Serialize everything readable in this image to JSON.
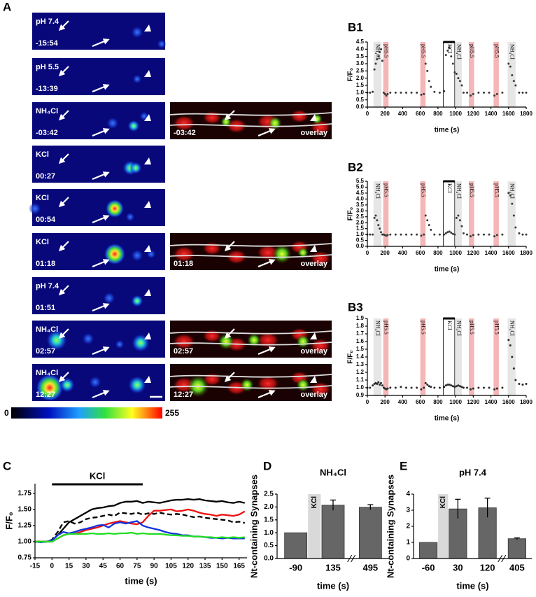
{
  "panel_a": {
    "label": "A",
    "rows": [
      {
        "condition": "pH 7.4",
        "time": "-15:54"
      },
      {
        "condition": "pH 5.5",
        "time": "-13:39"
      },
      {
        "condition": "NH₄Cl",
        "time": "-03:42"
      },
      {
        "condition": "KCl",
        "time": "00:27"
      },
      {
        "condition": "KCl",
        "time": "00:54"
      },
      {
        "condition": "KCl",
        "time": "01:18"
      },
      {
        "condition": "pH 7.4",
        "time": "01:51"
      },
      {
        "condition": "NH₄Cl",
        "time": "02:57"
      },
      {
        "condition": "NH₄Cl",
        "time": "12:27"
      }
    ],
    "overlays": [
      {
        "time": "-03:42",
        "label": "overlay"
      },
      {
        "time": "01:18",
        "label": "overlay"
      },
      {
        "time": "02:57",
        "label": "overlay"
      },
      {
        "time": "12:27",
        "label": "overlay"
      }
    ],
    "colorbar": {
      "min": 0,
      "max": 255
    }
  },
  "chart_data": [
    {
      "type": "scatter",
      "panel": "B1",
      "xlabel": "time (s)",
      "ylabel": "F/F₀",
      "color": "#3a3a3a",
      "x": [
        0,
        30,
        60,
        80,
        95,
        110,
        125,
        140,
        155,
        170,
        185,
        200,
        215,
        230,
        260,
        320,
        380,
        440,
        500,
        560,
        610,
        640,
        660,
        680,
        700,
        720,
        760,
        820,
        870,
        890,
        910,
        930,
        950,
        970,
        990,
        1010,
        1030,
        1050,
        1070,
        1090,
        1130,
        1170,
        1200,
        1260,
        1320,
        1380,
        1440,
        1470,
        1530,
        1600,
        1620,
        1640,
        1660,
        1680,
        1720,
        1760,
        1800
      ],
      "values": [
        1.0,
        1.0,
        1.05,
        2.6,
        3.0,
        3.3,
        3.5,
        3.8,
        4.0,
        3.2,
        1.0,
        0.9,
        0.8,
        0.9,
        1.0,
        1.0,
        1.0,
        1.0,
        1.0,
        1.0,
        0.85,
        0.9,
        3.0,
        2.5,
        1.8,
        1.4,
        1.05,
        1.0,
        1.1,
        3.6,
        3.9,
        4.1,
        3.5,
        3.0,
        2.4,
        2.3,
        2.0,
        1.8,
        1.5,
        1.0,
        1.0,
        0.8,
        0.9,
        1.0,
        1.0,
        1.0,
        0.8,
        0.9,
        1.0,
        3.0,
        2.8,
        2.2,
        1.8,
        1.5,
        1.0,
        1.0,
        1.0
      ],
      "xlim": [
        0,
        1800
      ],
      "xticks": [
        0,
        200,
        400,
        600,
        800,
        1000,
        1200,
        1400,
        1600,
        1800
      ],
      "ylim": [
        0,
        4.5
      ],
      "yticks": [
        {
          "value": 0,
          "label": "0.0"
        },
        0.5,
        {
          "value": 1,
          "label": "1.0"
        },
        1.5,
        {
          "value": 2,
          "label": "2.0"
        },
        2.5,
        {
          "value": 3,
          "label": "3.0"
        },
        3.5,
        {
          "value": 4,
          "label": "4.0"
        },
        4.5
      ],
      "regions": [
        {
          "label": "NH₄Cl",
          "start": 70,
          "end": 160,
          "color": "#e6e6e6"
        },
        {
          "label": "pH5.5",
          "start": 180,
          "end": 240,
          "color": "#f4b6b6"
        },
        {
          "label": "pH5.5",
          "start": 600,
          "end": 660,
          "color": "#f4b6b6"
        },
        {
          "label": "KCl",
          "start": 860,
          "end": 990,
          "color": "#ffffff",
          "outline": true
        },
        {
          "label": "NH₄Cl",
          "start": 1000,
          "end": 1070,
          "color": "#e6e6e6"
        },
        {
          "label": "pH5.5",
          "start": 1150,
          "end": 1210,
          "color": "#f4b6b6"
        },
        {
          "label": "pH5.5",
          "start": 1430,
          "end": 1490,
          "color": "#f4b6b6"
        },
        {
          "label": "NH₄Cl",
          "start": 1590,
          "end": 1680,
          "color": "#e6e6e6"
        }
      ]
    },
    {
      "type": "scatter",
      "panel": "B2",
      "xlabel": "time (s)",
      "ylabel": "F/F₀",
      "color": "#3a3a3a",
      "x": [
        0,
        30,
        60,
        80,
        95,
        110,
        125,
        140,
        155,
        170,
        185,
        200,
        215,
        230,
        260,
        320,
        380,
        440,
        500,
        560,
        610,
        640,
        660,
        680,
        700,
        720,
        760,
        820,
        870,
        890,
        910,
        930,
        950,
        970,
        990,
        1010,
        1030,
        1050,
        1070,
        1090,
        1130,
        1170,
        1200,
        1260,
        1320,
        1380,
        1440,
        1470,
        1530,
        1600,
        1620,
        1640,
        1660,
        1680,
        1720,
        1760,
        1800
      ],
      "values": [
        1.0,
        1.0,
        1.0,
        2.4,
        2.6,
        2.2,
        1.8,
        1.5,
        1.2,
        1.0,
        1.0,
        0.95,
        0.9,
        0.95,
        1.0,
        1.0,
        1.0,
        1.0,
        1.0,
        1.0,
        0.9,
        1.0,
        2.6,
        2.2,
        1.8,
        1.4,
        1.0,
        1.0,
        1.0,
        1.1,
        1.2,
        1.25,
        1.15,
        1.05,
        1.0,
        2.4,
        2.6,
        2.2,
        1.7,
        1.1,
        1.0,
        0.85,
        0.95,
        1.0,
        1.0,
        1.0,
        0.85,
        0.95,
        1.0,
        4.5,
        4.3,
        3.6,
        2.6,
        1.6,
        1.1,
        1.0,
        1.0
      ],
      "xlim": [
        0,
        1800
      ],
      "xticks": [
        0,
        200,
        400,
        600,
        800,
        1000,
        1200,
        1400,
        1600,
        1800
      ],
      "ylim": [
        0,
        5.5
      ],
      "yticks": [
        {
          "value": 0,
          "label": "0.0"
        },
        0.5,
        {
          "value": 1,
          "label": "1.0"
        },
        1.5,
        {
          "value": 2,
          "label": "2.0"
        },
        2.5,
        {
          "value": 3,
          "label": "3.0"
        },
        3.5,
        {
          "value": 4,
          "label": "4.0"
        },
        4.5,
        {
          "value": 5,
          "label": "5.0"
        },
        5.5
      ],
      "regions": [
        {
          "label": "NH₄Cl",
          "start": 70,
          "end": 160,
          "color": "#e6e6e6"
        },
        {
          "label": "pH5.5",
          "start": 180,
          "end": 240,
          "color": "#f4b6b6"
        },
        {
          "label": "pH5.5",
          "start": 600,
          "end": 660,
          "color": "#f4b6b6"
        },
        {
          "label": "KCl",
          "start": 860,
          "end": 990,
          "color": "#ffffff",
          "outline": true
        },
        {
          "label": "NH₄Cl",
          "start": 1000,
          "end": 1070,
          "color": "#e6e6e6"
        },
        {
          "label": "pH5.5",
          "start": 1150,
          "end": 1210,
          "color": "#f4b6b6"
        },
        {
          "label": "pH5.5",
          "start": 1430,
          "end": 1490,
          "color": "#f4b6b6"
        },
        {
          "label": "NH₄Cl",
          "start": 1590,
          "end": 1680,
          "color": "#e6e6e6"
        }
      ]
    },
    {
      "type": "scatter",
      "panel": "B3",
      "xlabel": "time (s)",
      "ylabel": "F/F₀",
      "color": "#2a2a2a",
      "x": [
        0,
        30,
        60,
        80,
        95,
        110,
        125,
        140,
        155,
        170,
        185,
        200,
        215,
        230,
        260,
        320,
        380,
        440,
        500,
        560,
        610,
        640,
        660,
        680,
        700,
        720,
        760,
        820,
        870,
        890,
        910,
        930,
        950,
        970,
        990,
        1010,
        1030,
        1050,
        1070,
        1090,
        1130,
        1170,
        1200,
        1260,
        1320,
        1380,
        1440,
        1470,
        1530,
        1600,
        1620,
        1640,
        1660,
        1680,
        1720,
        1760,
        1800
      ],
      "values": [
        1.0,
        1.0,
        1.03,
        1.05,
        1.06,
        1.05,
        1.07,
        1.04,
        1.06,
        1.03,
        1.0,
        0.99,
        0.98,
        0.99,
        1.0,
        1.0,
        1.01,
        1.0,
        1.0,
        1.0,
        0.98,
        1.0,
        1.06,
        1.04,
        1.02,
        1.01,
        1.0,
        1.0,
        1.01,
        1.03,
        1.04,
        1.04,
        1.03,
        1.02,
        1.01,
        1.02,
        1.03,
        1.02,
        1.01,
        1.0,
        1.0,
        0.98,
        0.99,
        1.0,
        1.0,
        1.0,
        0.98,
        0.99,
        1.0,
        1.62,
        1.55,
        1.4,
        1.25,
        1.1,
        1.05,
        1.04,
        1.05
      ],
      "xlim": [
        0,
        1800
      ],
      "xticks": [
        0,
        200,
        400,
        600,
        800,
        1000,
        1200,
        1400,
        1600,
        1800
      ],
      "ylim": [
        0.9,
        1.9
      ],
      "yticks": [
        0.9,
        {
          "value": 1,
          "label": "1.0"
        },
        1.1,
        1.2,
        1.3,
        1.4,
        1.5,
        1.6,
        1.7,
        1.8,
        1.9
      ],
      "regions": [
        {
          "label": "NH₄Cl",
          "start": 70,
          "end": 160,
          "color": "#e6e6e6"
        },
        {
          "label": "pH5.5",
          "start": 180,
          "end": 240,
          "color": "#f4b6b6"
        },
        {
          "label": "pH5.5",
          "start": 600,
          "end": 660,
          "color": "#f4b6b6"
        },
        {
          "label": "KCl",
          "start": 860,
          "end": 990,
          "color": "#ffffff",
          "outline": true
        },
        {
          "label": "NH₄Cl",
          "start": 1000,
          "end": 1070,
          "color": "#e6e6e6"
        },
        {
          "label": "pH5.5",
          "start": 1150,
          "end": 1210,
          "color": "#f4b6b6"
        },
        {
          "label": "pH5.5",
          "start": 1430,
          "end": 1490,
          "color": "#f4b6b6"
        },
        {
          "label": "NH₄Cl",
          "start": 1590,
          "end": 1680,
          "color": "#e6e6e6"
        }
      ]
    },
    {
      "type": "line",
      "panel": "C",
      "xlabel": "time (s)",
      "ylabel": "F/F₀",
      "x": [
        -15,
        -10,
        -5,
        0,
        5,
        10,
        15,
        20,
        25,
        30,
        35,
        40,
        45,
        50,
        55,
        60,
        65,
        70,
        75,
        80,
        85,
        90,
        95,
        100,
        105,
        110,
        115,
        120,
        125,
        130,
        135,
        140,
        145,
        150,
        155,
        160,
        165,
        170
      ],
      "series": [
        {
          "color": "#000000",
          "values": [
            1.0,
            1.0,
            1.0,
            1.02,
            1.1,
            1.2,
            1.3,
            1.35,
            1.4,
            1.45,
            1.5,
            1.52,
            1.53,
            1.55,
            1.56,
            1.6,
            1.62,
            1.62,
            1.63,
            1.6,
            1.62,
            1.61,
            1.6,
            1.62,
            1.64,
            1.65,
            1.65,
            1.66,
            1.65,
            1.66,
            1.64,
            1.63,
            1.62,
            1.63,
            1.61,
            1.6,
            1.62,
            1.6
          ]
        },
        {
          "color": "#000000",
          "style": "dashed",
          "values": [
            1.0,
            1.0,
            1.0,
            1.03,
            1.15,
            1.3,
            1.32,
            1.28,
            1.3,
            1.35,
            1.37,
            1.38,
            1.4,
            1.42,
            1.4,
            1.45,
            1.44,
            1.43,
            1.45,
            1.42,
            1.44,
            1.43,
            1.45,
            1.43,
            1.42,
            1.43,
            1.42,
            1.4,
            1.38,
            1.39,
            1.37,
            1.36,
            1.35,
            1.34,
            1.33,
            1.3,
            1.31,
            1.29
          ]
        },
        {
          "color": "#ee1111",
          "values": [
            1.0,
            1.0,
            1.0,
            1.0,
            1.05,
            1.1,
            1.12,
            1.12,
            1.15,
            1.18,
            1.2,
            1.22,
            1.25,
            1.28,
            1.3,
            1.32,
            1.3,
            1.28,
            1.27,
            1.3,
            1.4,
            1.48,
            1.48,
            1.49,
            1.5,
            1.47,
            1.48,
            1.5,
            1.48,
            1.45,
            1.43,
            1.42,
            1.4,
            1.42,
            1.41,
            1.4,
            1.42,
            1.47
          ]
        },
        {
          "color": "#1133dd",
          "values": [
            1.0,
            0.99,
            1.0,
            1.02,
            1.1,
            1.15,
            1.13,
            1.15,
            1.18,
            1.2,
            1.22,
            1.25,
            1.26,
            1.22,
            1.28,
            1.3,
            1.28,
            1.3,
            1.32,
            1.25,
            1.22,
            1.2,
            1.18,
            1.15,
            1.13,
            1.12,
            1.1,
            1.1,
            1.08,
            1.08,
            1.07,
            1.06,
            1.06,
            1.05,
            1.06,
            1.05,
            1.05,
            1.05
          ]
        },
        {
          "color": "#22dd22",
          "values": [
            1.0,
            1.0,
            1.0,
            1.0,
            1.05,
            1.1,
            1.12,
            1.12,
            1.12,
            1.12,
            1.13,
            1.12,
            1.12,
            1.13,
            1.12,
            1.13,
            1.13,
            1.14,
            1.12,
            1.13,
            1.12,
            1.12,
            1.12,
            1.11,
            1.1,
            1.1,
            1.09,
            1.09,
            1.08,
            1.08,
            1.07,
            1.07,
            1.06,
            1.07,
            1.06,
            1.07,
            1.06,
            1.07
          ]
        }
      ],
      "xlim": [
        -15,
        172
      ],
      "xticks": [
        -15,
        0,
        15,
        30,
        45,
        60,
        75,
        90,
        105,
        120,
        135,
        150,
        165
      ],
      "ylim": [
        0.75,
        1.9
      ],
      "yticks": [
        0.75,
        {
          "value": 1,
          "label": "1.00"
        },
        1.25,
        {
          "value": 1.5,
          "label": "1.50"
        },
        1.75
      ],
      "annotation": {
        "text": "KCl",
        "start": 0,
        "end": 80
      }
    },
    {
      "type": "bar",
      "panel": "D",
      "title": "NH₄Cl",
      "xlabel": "time (s)",
      "ylabel": "Nt-containing Synapses",
      "categories": [
        "-90",
        "135",
        "495"
      ],
      "values": [
        1.0,
        2.07,
        1.99
      ],
      "errors": [
        null,
        0.2,
        0.1
      ],
      "color": "#666666",
      "ylim": [
        0,
        2.5
      ],
      "yticks": [
        {
          "value": 0,
          "label": "0.0"
        },
        0.5,
        {
          "value": 1,
          "label": "1.0"
        },
        1.5,
        {
          "value": 2,
          "label": "2.0"
        },
        2.5
      ],
      "band_label": "KCl"
    },
    {
      "type": "bar",
      "panel": "E",
      "title": "pH 7.4",
      "xlabel": "time (s)",
      "ylabel": "Nt-containing Synapses",
      "categories": [
        "-60",
        "30",
        "120",
        "405"
      ],
      "values": [
        1.0,
        3.08,
        3.15,
        1.23
      ],
      "errors": [
        null,
        0.6,
        0.6,
        0.05
      ],
      "color": "#666666",
      "ylim": [
        0,
        4
      ],
      "yticks": [
        0,
        1,
        2,
        3,
        4
      ],
      "band_label": "KCl"
    }
  ]
}
